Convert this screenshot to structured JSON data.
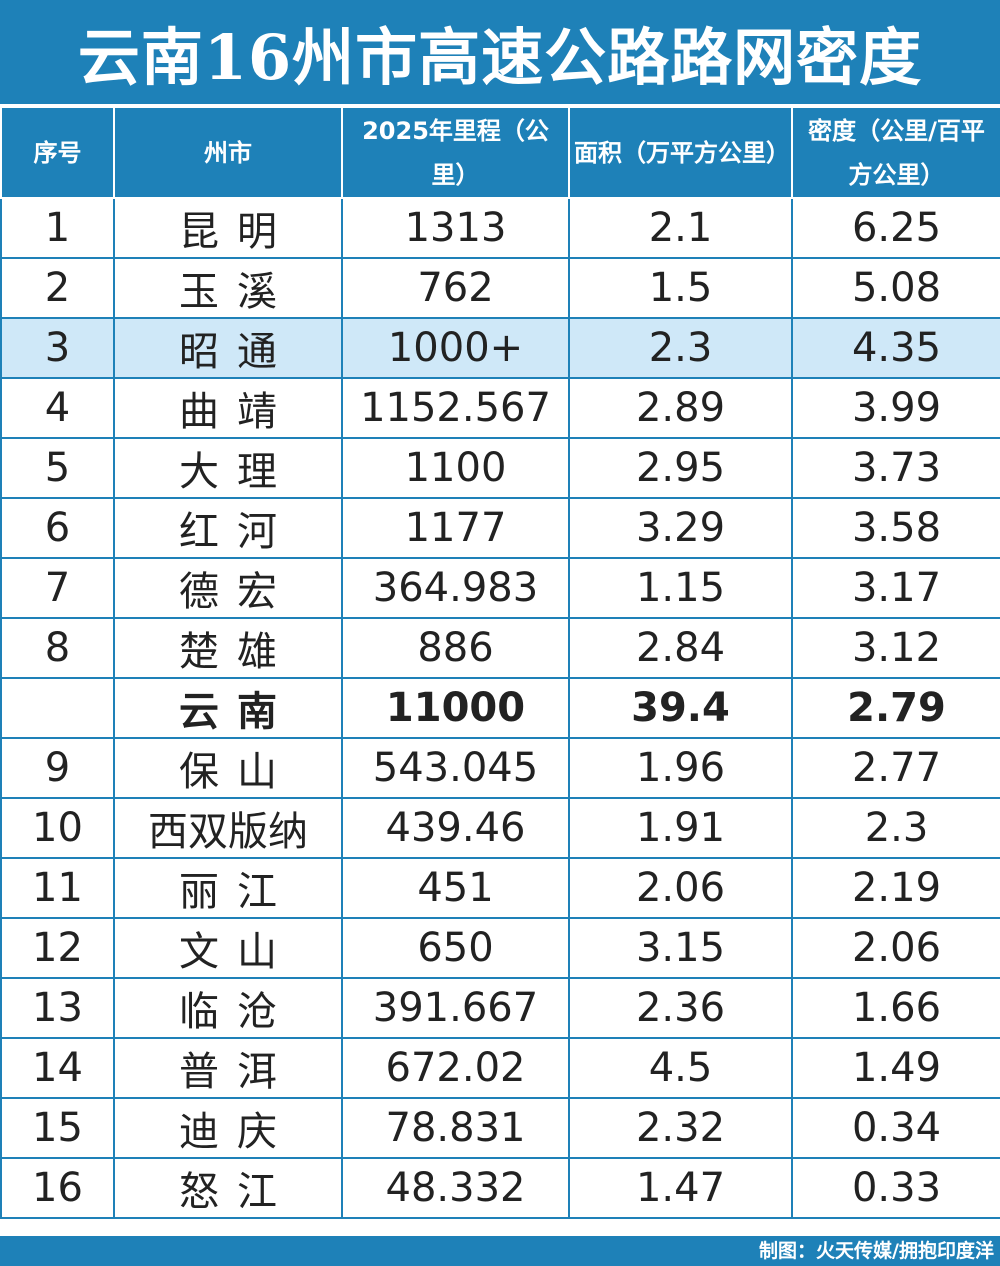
{
  "title": "云南16州市高速公路路网密度",
  "headers": {
    "no": "序号",
    "city": "州市",
    "mileage": "2025年里程（公里）",
    "area": "面积（万平方公里）",
    "density": "密度（公里/百平方公里）"
  },
  "rows": [
    {
      "no": "1",
      "city": "昆明",
      "mileage": "1313",
      "area": "2.1",
      "density": "6.25"
    },
    {
      "no": "2",
      "city": "玉溪",
      "mileage": "762",
      "area": "1.5",
      "density": "5.08"
    },
    {
      "no": "3",
      "city": "昭通",
      "mileage": "1000+",
      "area": "2.3",
      "density": "4.35"
    },
    {
      "no": "4",
      "city": "曲靖",
      "mileage": "1152.567",
      "area": "2.89",
      "density": "3.99"
    },
    {
      "no": "5",
      "city": "大理",
      "mileage": "1100",
      "area": "2.95",
      "density": "3.73"
    },
    {
      "no": "6",
      "city": "红河",
      "mileage": "1177",
      "area": "3.29",
      "density": "3.58"
    },
    {
      "no": "7",
      "city": "德宏",
      "mileage": "364.983",
      "area": "1.15",
      "density": "3.17"
    },
    {
      "no": "8",
      "city": "楚雄",
      "mileage": "886",
      "area": "2.84",
      "density": "3.12"
    },
    {
      "no": "",
      "city": "云南",
      "mileage": "11000",
      "area": "39.4",
      "density": "2.79"
    },
    {
      "no": "9",
      "city": "保山",
      "mileage": "543.045",
      "area": "1.96",
      "density": "2.77"
    },
    {
      "no": "10",
      "city": "西双版纳",
      "mileage": "439.46",
      "area": "1.91",
      "density": "2.3"
    },
    {
      "no": "11",
      "city": "丽江",
      "mileage": "451",
      "area": "2.06",
      "density": "2.19"
    },
    {
      "no": "12",
      "city": "文山",
      "mileage": "650",
      "area": "3.15",
      "density": "2.06"
    },
    {
      "no": "13",
      "city": "临沧",
      "mileage": "391.667",
      "area": "2.36",
      "density": "1.66"
    },
    {
      "no": "14",
      "city": "普洱",
      "mileage": "672.02",
      "area": "4.5",
      "density": "1.49"
    },
    {
      "no": "15",
      "city": "迪庆",
      "mileage": "78.831",
      "area": "2.32",
      "density": "0.34"
    },
    {
      "no": "16",
      "city": "怒江",
      "mileage": "48.332",
      "area": "1.47",
      "density": "0.33"
    }
  ],
  "highlighted_row": 2,
  "total_row": 8,
  "footer": "制图：火天传媒/拥抱印度洋",
  "colors": {
    "header_blue": "#1e81b8",
    "highlight": "#cfe8f8",
    "text": "#222222"
  }
}
